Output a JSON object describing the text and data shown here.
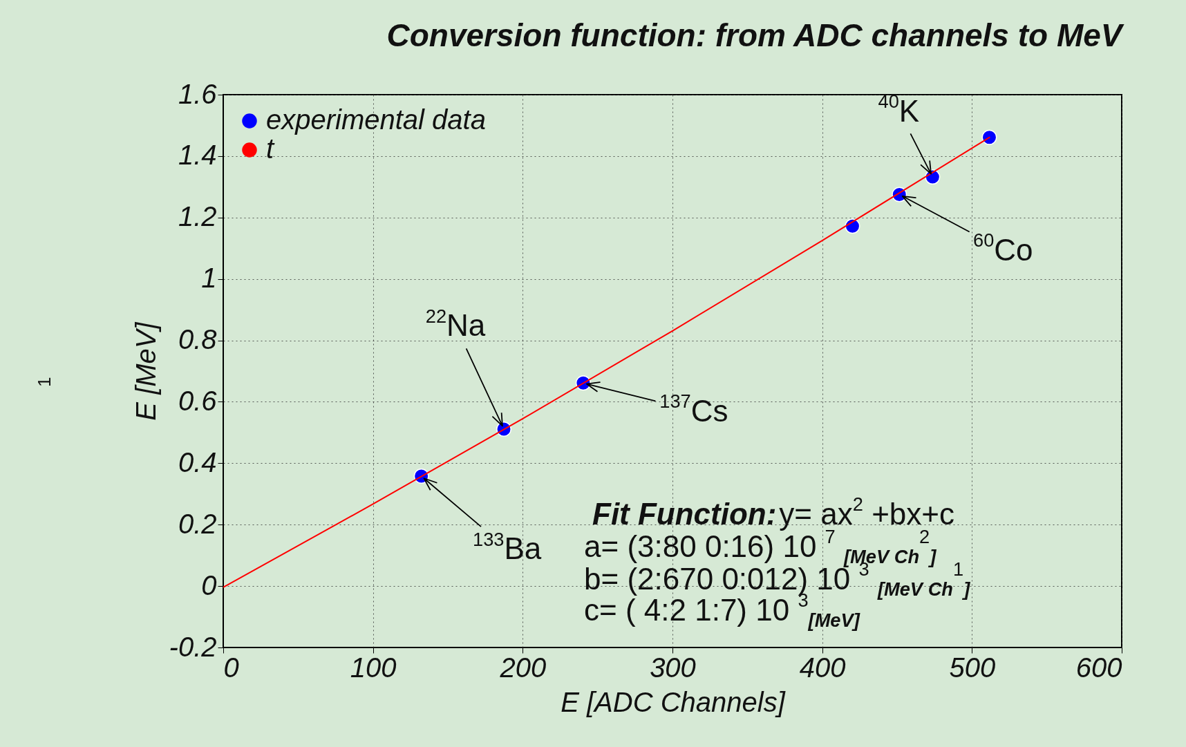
{
  "chart_data": {
    "type": "scatter",
    "title": "Conversion function: from ADC channels to MeV",
    "xlabel": "E [ADC Channels]",
    "ylabel": "E [MeV]",
    "xlim": [
      0,
      600
    ],
    "xticks": [
      0,
      100,
      200,
      300,
      400,
      500,
      600
    ],
    "ylim": [
      -0.2,
      1.6
    ],
    "yticks": [
      -0.2,
      0,
      0.2,
      0.4,
      0.6,
      0.8,
      1,
      1.2,
      1.4,
      1.6
    ],
    "grid": true,
    "legend": "top left",
    "marker": "circle",
    "series": [
      {
        "name": "experimental data",
        "color": "#0000ff",
        "x": [
          132.3,
          187.4,
          240.4,
          420.2,
          451.5,
          473.7,
          511.6
        ],
        "values": [
          0.358,
          0.511,
          0.661,
          1.172,
          1.275,
          1.332,
          1.461
        ]
      },
      {
        "name": "t",
        "type": "line",
        "marker": "none",
        "color": "#ff0000",
        "x": [
          0,
          100,
          200,
          300,
          400,
          512
        ],
        "values": [
          -0.004,
          0.267,
          0.545,
          0.831,
          1.125,
          1.462
        ]
      }
    ],
    "annotations": [
      {
        "text": "$^{22}$Na",
        "x": 187.4,
        "y": 0.511
      },
      {
        "text": "$^{133}$Ba",
        "x": 132.3,
        "y": 0.358
      },
      {
        "text": "$^{137}$Cs",
        "x": 240.4,
        "y": 0.661
      },
      {
        "text": "$^{40}$K",
        "x": 473.7,
        "y": 1.332
      },
      {
        "text": "$^{60}$Co",
        "x": 451.5,
        "y": 1.275
      },
      "Fit Function:",
      "y= ax$^{2}$ +bx+c",
      "a= (3:80 0:16) 10 $^{7}$ $_{[MeV Ch}$$^{2}$$_{]}$",
      "b= (2:670 0:012) 10 $^{3}$ $_{[MeV Ch}$$^{1}$$_{]}$",
      "c= ( 4:2 1:7) 10 $^{3}$$_{[MeV]}$",
      "1"
    ]
  }
}
